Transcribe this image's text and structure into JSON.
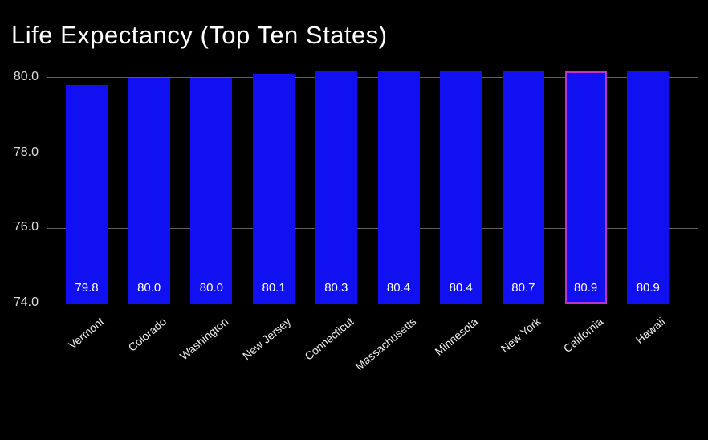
{
  "title": "Life Expectancy (Top Ten States)",
  "chart_data": {
    "type": "bar",
    "title": "Life Expectancy (Top Ten States)",
    "xlabel": "",
    "ylabel": "",
    "categories": [
      "Vermont",
      "Colorado",
      "Washington",
      "New Jersey",
      "Connecticut",
      "Massachusetts",
      "Minnesota",
      "New York",
      "California",
      "Hawaii"
    ],
    "values": [
      79.8,
      80.0,
      80.0,
      80.1,
      80.3,
      80.4,
      80.4,
      80.7,
      80.9,
      80.9
    ],
    "value_labels": [
      "79.8",
      "80.0",
      "80.0",
      "80.1",
      "80.3",
      "80.4",
      "80.4",
      "80.7",
      "80.9",
      "80.9"
    ],
    "ylim": [
      74.0,
      80.17
    ],
    "yticks": [
      74.0,
      76.0,
      78.0,
      80.0
    ],
    "ytick_labels": [
      "74.0",
      "76.0",
      "78.0",
      "80.0"
    ],
    "grid": true,
    "legend": false,
    "bars_clipped_at_top": true,
    "highlighted_category": "California",
    "colors": {
      "background": "#000000",
      "bar_fill": "#1010f0",
      "highlight_outline": "#bb33cc",
      "gridline": "#5f5f5f",
      "title_text": "#ffffff",
      "ytick_text": "#dddddd",
      "xtick_text": "#eeeeee",
      "value_label_text": "#ffffff"
    }
  }
}
